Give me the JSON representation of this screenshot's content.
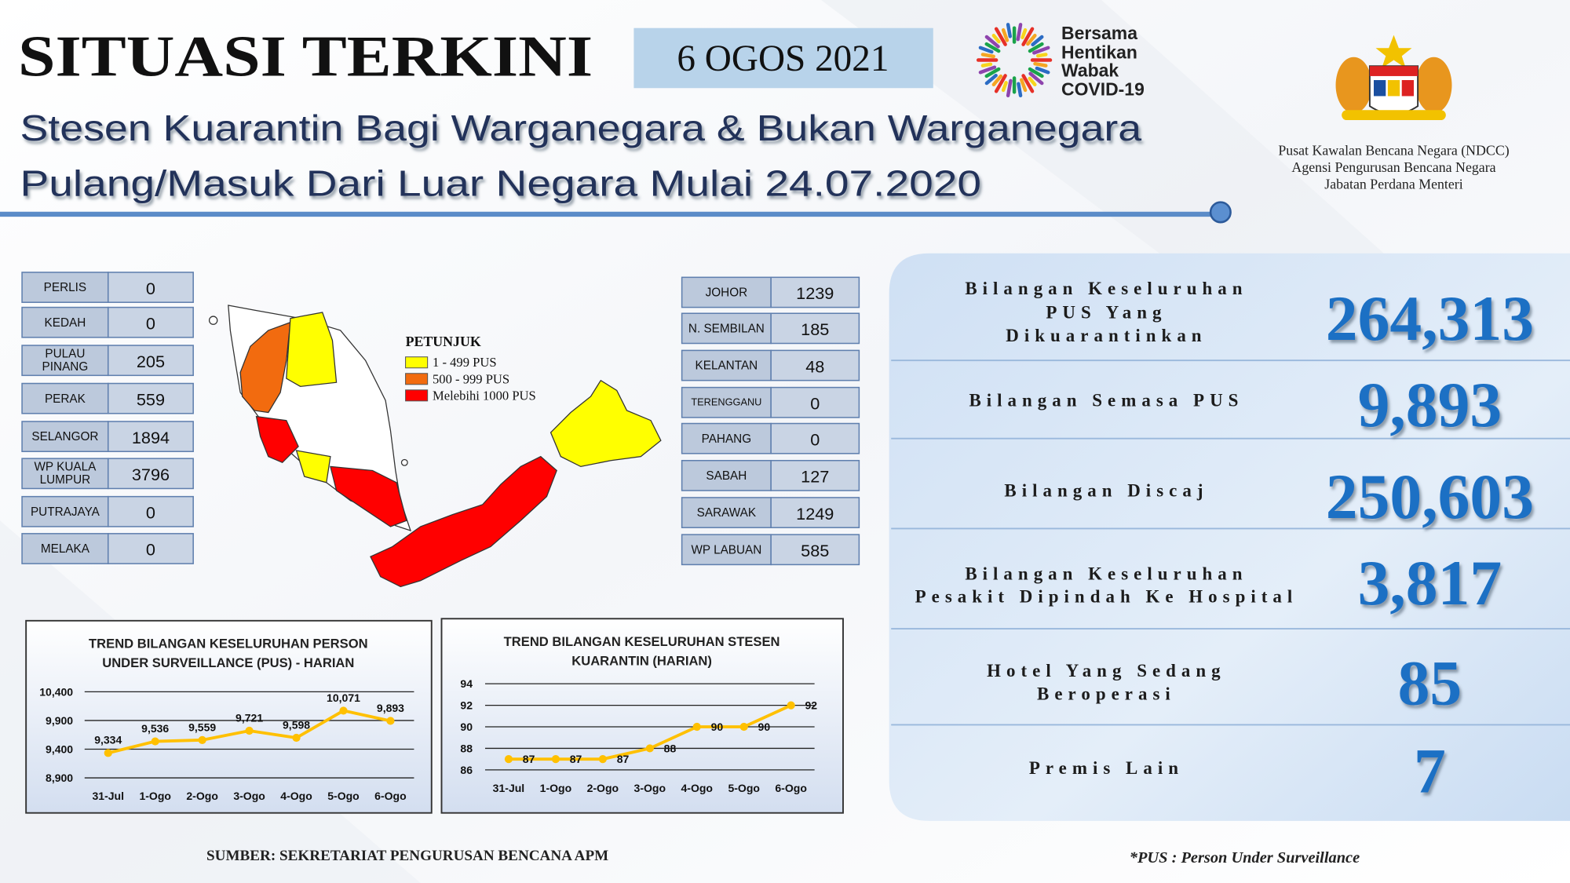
{
  "header": {
    "title": "SITUASI TERKINI",
    "date": "6 OGOS 2021",
    "subtitle": [
      "Stesen Kuarantin Bagi Warganegara & Bukan Warganegara",
      "Pulang/Masuk Dari Luar Negara Mulai 24.07.2020"
    ],
    "campaign": [
      "Bersama",
      "Hentikan",
      "Wabak",
      "COVID-19"
    ],
    "agency": [
      "Pusat Kawalan Bencana Negara (NDCC)",
      "Agensi Pengurusan Bencana Negara",
      "Jabatan Perdana Menteri"
    ]
  },
  "states_left": [
    {
      "name": "PERLIS",
      "value": 0
    },
    {
      "name": "KEDAH",
      "value": 0
    },
    {
      "name": "PULAU PINANG",
      "value": 205
    },
    {
      "name": "PERAK",
      "value": 559
    },
    {
      "name": "SELANGOR",
      "value": 1894
    },
    {
      "name": "WP KUALA LUMPUR",
      "value": 3796
    },
    {
      "name": "PUTRAJAYA",
      "value": 0
    },
    {
      "name": "MELAKA",
      "value": 0
    }
  ],
  "states_right": [
    {
      "name": "JOHOR",
      "value": 1239
    },
    {
      "name": "N. SEMBILAN",
      "value": 185
    },
    {
      "name": "KELANTAN",
      "value": 48
    },
    {
      "name": "TERENGGANU",
      "value": 0
    },
    {
      "name": "PAHANG",
      "value": 0
    },
    {
      "name": "SABAH",
      "value": 127
    },
    {
      "name": "SARAWAK",
      "value": 1249
    },
    {
      "name": "WP LABUAN",
      "value": 585
    }
  ],
  "legend": {
    "title": "PETUNJUK",
    "items": [
      {
        "label": "1 - 499 PUS",
        "color": "#ffff00"
      },
      {
        "label": "500 - 999 PUS",
        "color": "#f26b0f"
      },
      {
        "label": "Melebihi 1000 PUS",
        "color": "#ff0000"
      }
    ]
  },
  "stats": [
    {
      "label": [
        "Bilangan Keseluruhan",
        "PUS Yang",
        "Dikuarantinkan"
      ],
      "value": "264,313"
    },
    {
      "label": [
        "Bilangan Semasa PUS"
      ],
      "value": "9,893"
    },
    {
      "label": [
        "Bilangan Discaj"
      ],
      "value": "250,603"
    },
    {
      "label": [
        "Bilangan Keseluruhan",
        "Pesakit Dipindah Ke Hospital"
      ],
      "value": "3,817"
    },
    {
      "label": [
        "Hotel Yang Sedang",
        "Beroperasi"
      ],
      "value": "85"
    },
    {
      "label": [
        "Premis Lain"
      ],
      "value": "7"
    }
  ],
  "chart_data": [
    {
      "type": "line",
      "title": [
        "TREND BILANGAN KESELURUHAN PERSON",
        "UNDER SURVEILLANCE (PUS) - HARIAN"
      ],
      "categories": [
        "31-Jul",
        "1-Ogo",
        "2-Ogo",
        "3-Ogo",
        "4-Ogo",
        "5-Ogo",
        "6-Ogo"
      ],
      "series": [
        {
          "color": "#ffc000",
          "values": [
            9334,
            9536,
            9559,
            9721,
            9598,
            10071,
            9893
          ],
          "value_labels": [
            "9,334",
            "9,536",
            "9,559",
            "9,721",
            "9,598",
            "10,071",
            "9,893"
          ]
        }
      ],
      "ylim": [
        8900,
        10400
      ],
      "yticks": [
        {
          "value": 8900,
          "label": "8,900"
        },
        {
          "value": 9400,
          "label": "9,400"
        },
        {
          "value": 9900,
          "label": "9,900"
        },
        {
          "value": 10400,
          "label": "10,400"
        }
      ],
      "grid": true
    },
    {
      "type": "line",
      "title": [
        "TREND BILANGAN KESELURUHAN STESEN",
        "KUARANTIN (HARIAN)"
      ],
      "categories": [
        "31-Jul",
        "1-Ogo",
        "2-Ogo",
        "3-Ogo",
        "4-Ogo",
        "5-Ogo",
        "6-Ogo"
      ],
      "series": [
        {
          "color": "#ffc000",
          "values": [
            87,
            87,
            87,
            88,
            90,
            90,
            92
          ]
        }
      ],
      "ylim": [
        86,
        94
      ],
      "yticks": [
        86,
        88,
        90,
        92,
        94
      ],
      "grid": true
    }
  ],
  "footer": {
    "source": "SUMBER: SEKRETARIAT PENGURUSAN BENCANA APM",
    "note": "*PUS : Person Under Surveillance"
  }
}
